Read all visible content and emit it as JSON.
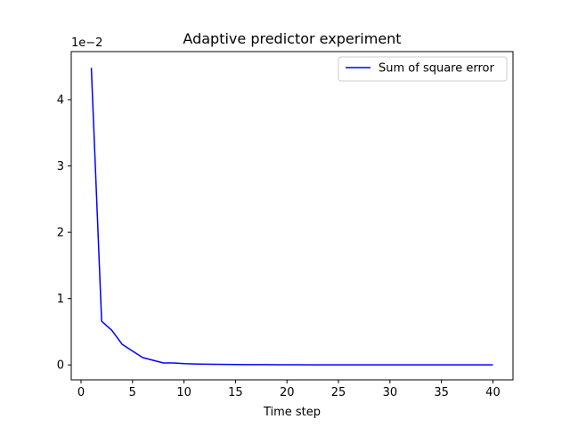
{
  "chart_data": {
    "type": "line",
    "title": "Adaptive predictor experiment",
    "xlabel": "Time step",
    "ylabel": "",
    "y_scale_label": "1e−2",
    "xlim": [
      -0.95,
      41.95
    ],
    "ylim": [
      -0.225,
      4.725
    ],
    "x_ticks": [
      0,
      5,
      10,
      15,
      20,
      25,
      30,
      35,
      40
    ],
    "y_ticks": [
      0,
      1,
      2,
      3,
      4
    ],
    "grid": false,
    "legend_position": "upper right",
    "series": [
      {
        "name": "Sum of square error",
        "color": "#0000ff",
        "x": [
          1,
          2,
          3,
          4,
          5,
          6,
          7,
          8,
          9,
          10,
          11,
          12,
          13,
          14,
          15,
          16,
          17,
          18,
          19,
          20,
          21,
          22,
          23,
          24,
          25,
          26,
          27,
          28,
          29,
          30,
          31,
          32,
          33,
          34,
          35,
          36,
          37,
          38,
          39,
          40
        ],
        "values": [
          4.48,
          0.66,
          0.52,
          0.31,
          0.21,
          0.11,
          0.07,
          0.03,
          0.03,
          0.02,
          0.015,
          0.012,
          0.01,
          0.008,
          0.006,
          0.005,
          0.004,
          0.004,
          0.003,
          0.003,
          0.003,
          0.002,
          0.002,
          0.002,
          0.002,
          0.002,
          0.002,
          0.002,
          0.002,
          0.002,
          0.002,
          0.002,
          0.002,
          0.002,
          0.002,
          0.002,
          0.002,
          0.002,
          0.002,
          0.002
        ]
      }
    ]
  }
}
